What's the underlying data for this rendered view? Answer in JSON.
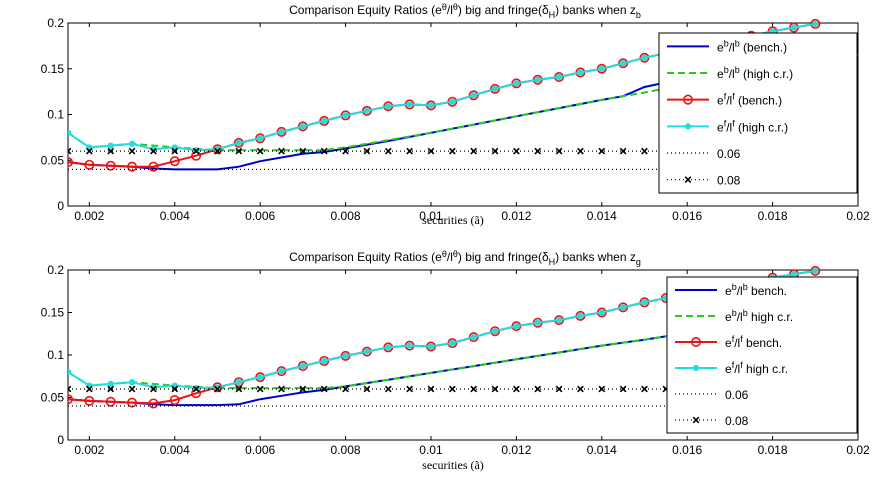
{
  "chart_data": [
    {
      "type": "line",
      "title": "Comparison Equity Ratios (eθ/lθ) big and fringe(δH) banks when zb",
      "title_parts": {
        "pre": "Comparison Equity Ratios (e",
        "sup1": "θ",
        "mid1": "/l",
        "sup2": "θ",
        "mid2": ") big and fringe(δ",
        "sub1": "H",
        "mid3": ") banks when z",
        "sub2": "b"
      },
      "xlabel": "securities (ã)",
      "ylabel": "",
      "xlim": [
        0.0015,
        0.02
      ],
      "ylim": [
        0,
        0.2
      ],
      "xticks": [
        0.002,
        0.004,
        0.006,
        0.008,
        0.01,
        0.012,
        0.014,
        0.016,
        0.018,
        0.02
      ],
      "xtick_labels": [
        "0.002",
        "0.004",
        "0.006",
        "0.008",
        "0.01",
        "0.012",
        "0.014",
        "0.016",
        "0.018",
        "0.02"
      ],
      "yticks": [
        0,
        0.05,
        0.1,
        0.15,
        0.2
      ],
      "ytick_labels": [
        "0",
        "0.05",
        "0.1",
        "0.15",
        "0.2"
      ],
      "grid": false,
      "legend_position": "top-right",
      "series": [
        {
          "name": "e^b/l^b (bench.)",
          "legend": {
            "a": "e",
            "sa": "b",
            "b": "/l",
            "sb": "b",
            "rest": " (bench.)"
          },
          "color": "#0000cc",
          "style": "solid",
          "marker": "none",
          "x": [
            0.0015,
            0.002,
            0.0025,
            0.003,
            0.0035,
            0.004,
            0.0045,
            0.005,
            0.0055,
            0.006,
            0.0065,
            0.007,
            0.0075,
            0.008,
            0.009,
            0.01,
            0.011,
            0.012,
            0.013,
            0.014,
            0.0145,
            0.015,
            0.016,
            0.017,
            0.018,
            0.019,
            0.02
          ],
          "y": [
            0.048,
            0.045,
            0.044,
            0.043,
            0.041,
            0.04,
            0.04,
            0.04,
            0.043,
            0.049,
            0.053,
            0.057,
            0.059,
            0.063,
            0.071,
            0.08,
            0.089,
            0.098,
            0.107,
            0.116,
            0.12,
            0.13,
            0.14,
            0.15,
            0.16,
            0.167,
            0.174
          ]
        },
        {
          "name": "e^b/l^b (high c.r.)",
          "legend": {
            "a": "e",
            "sa": "b",
            "b": "/l",
            "sb": "b",
            "rest": " (high c.r.)"
          },
          "color": "#22cc22",
          "style": "dashed",
          "marker": "none",
          "x": [
            0.0015,
            0.002,
            0.003,
            0.004,
            0.005,
            0.0055,
            0.006,
            0.0065,
            0.007,
            0.0075,
            0.008,
            0.009,
            0.01,
            0.011,
            0.012,
            0.013,
            0.014,
            0.015,
            0.016,
            0.017,
            0.018,
            0.019,
            0.02
          ],
          "y": [
            0.08,
            0.064,
            0.068,
            0.064,
            0.061,
            0.061,
            0.061,
            0.061,
            0.061,
            0.061,
            0.064,
            0.072,
            0.08,
            0.089,
            0.098,
            0.107,
            0.116,
            0.124,
            0.133,
            0.142,
            0.15,
            0.158,
            0.165
          ]
        },
        {
          "name": "e^f/l^f (bench.)",
          "legend": {
            "a": "e",
            "sa": "f",
            "b": "/l",
            "sb": "f",
            "rest": " (bench.)"
          },
          "color": "#ee1111",
          "style": "solid",
          "marker": "circle",
          "x": [
            0.0015,
            0.002,
            0.0025,
            0.003,
            0.0035,
            0.004,
            0.0045,
            0.005,
            0.0055,
            0.006,
            0.0065,
            0.007,
            0.0075,
            0.008,
            0.0085,
            0.009,
            0.0095,
            0.01,
            0.0105,
            0.011,
            0.0115,
            0.012,
            0.0125,
            0.013,
            0.0135,
            0.014,
            0.0145,
            0.015,
            0.0155,
            0.016,
            0.0165,
            0.017,
            0.0175,
            0.018,
            0.0185,
            0.019
          ],
          "y": [
            0.048,
            0.045,
            0.044,
            0.043,
            0.043,
            0.049,
            0.055,
            0.062,
            0.069,
            0.074,
            0.081,
            0.087,
            0.093,
            0.099,
            0.104,
            0.109,
            0.111,
            0.11,
            0.114,
            0.121,
            0.128,
            0.134,
            0.138,
            0.141,
            0.146,
            0.15,
            0.156,
            0.162,
            0.167,
            0.172,
            0.176,
            0.181,
            0.186,
            0.191,
            0.195,
            0.199
          ]
        },
        {
          "name": "e^f/l^f (high c.r.)",
          "legend": {
            "a": "e",
            "sa": "f",
            "b": "/l",
            "sb": "f",
            "rest": " (high c.r.)"
          },
          "color": "#22dddd",
          "style": "solid",
          "marker": "dot",
          "x": [
            0.0015,
            0.002,
            0.0025,
            0.003,
            0.0035,
            0.004,
            0.0045,
            0.005,
            0.0055,
            0.006,
            0.0065,
            0.007,
            0.0075,
            0.008,
            0.0085,
            0.009,
            0.0095,
            0.01,
            0.0105,
            0.011,
            0.0115,
            0.012,
            0.0125,
            0.013,
            0.0135,
            0.014,
            0.0145,
            0.015,
            0.0155,
            0.016,
            0.0165,
            0.017,
            0.0175,
            0.018,
            0.0185,
            0.019
          ],
          "y": [
            0.08,
            0.064,
            0.066,
            0.068,
            0.062,
            0.064,
            0.061,
            0.062,
            0.069,
            0.074,
            0.081,
            0.087,
            0.093,
            0.099,
            0.104,
            0.109,
            0.111,
            0.11,
            0.114,
            0.121,
            0.128,
            0.134,
            0.138,
            0.141,
            0.146,
            0.15,
            0.156,
            0.162,
            0.167,
            0.172,
            0.176,
            0.181,
            0.186,
            0.191,
            0.195,
            0.199
          ]
        },
        {
          "name": "0.06",
          "legend": {
            "a": "0.06",
            "sa": "",
            "b": "",
            "sb": "",
            "rest": ""
          },
          "color": "#000000",
          "style": "dotted",
          "marker": "none",
          "x": [
            0.0015,
            0.02
          ],
          "y": [
            0.04,
            0.04
          ]
        },
        {
          "name": "0.08",
          "legend": {
            "a": "0.08",
            "sa": "",
            "b": "",
            "sb": "",
            "rest": ""
          },
          "color": "#000000",
          "style": "dotted",
          "marker": "x",
          "x": [
            0.0015,
            0.002,
            0.0025,
            0.003,
            0.0035,
            0.004,
            0.0045,
            0.005,
            0.0055,
            0.006,
            0.0065,
            0.007,
            0.0075,
            0.008,
            0.0085,
            0.009,
            0.0095,
            0.01,
            0.0105,
            0.011,
            0.0115,
            0.012,
            0.0125,
            0.013,
            0.0135,
            0.014,
            0.0145,
            0.015,
            0.0155,
            0.016,
            0.0165,
            0.017,
            0.0175,
            0.018,
            0.0185,
            0.019,
            0.0195,
            0.02
          ],
          "y": [
            0.06,
            0.06,
            0.06,
            0.06,
            0.06,
            0.06,
            0.06,
            0.06,
            0.06,
            0.06,
            0.06,
            0.06,
            0.06,
            0.06,
            0.06,
            0.06,
            0.06,
            0.06,
            0.06,
            0.06,
            0.06,
            0.06,
            0.06,
            0.06,
            0.06,
            0.06,
            0.06,
            0.06,
            0.06,
            0.06,
            0.06,
            0.06,
            0.06,
            0.06,
            0.06,
            0.06,
            0.06,
            0.06
          ]
        }
      ]
    },
    {
      "type": "line",
      "title": "Comparison Equity Ratios (eθ/lθ) big and fringe(δH) banks when zg",
      "title_parts": {
        "pre": "Comparison Equity Ratios (e",
        "sup1": "θ",
        "mid1": "/l",
        "sup2": "θ",
        "mid2": ") big and fringe(δ",
        "sub1": "H",
        "mid3": ") banks when z",
        "sub2": "g"
      },
      "xlabel": "securities (ã)",
      "ylabel": "",
      "xlim": [
        0.0015,
        0.02
      ],
      "ylim": [
        0,
        0.2
      ],
      "xticks": [
        0.002,
        0.004,
        0.006,
        0.008,
        0.01,
        0.012,
        0.014,
        0.016,
        0.018,
        0.02
      ],
      "xtick_labels": [
        "0.002",
        "0.004",
        "0.006",
        "0.008",
        "0.01",
        "0.012",
        "0.014",
        "0.016",
        "0.018",
        "0.02"
      ],
      "yticks": [
        0,
        0.05,
        0.1,
        0.15,
        0.2
      ],
      "ytick_labels": [
        "0",
        "0.05",
        "0.1",
        "0.15",
        "0.2"
      ],
      "grid": false,
      "legend_position": "top-right",
      "series": [
        {
          "name": "e^b/l^b bench.",
          "legend": {
            "a": "e",
            "sa": "b",
            "b": "/l",
            "sb": "b",
            "rest": " bench."
          },
          "color": "#0000cc",
          "style": "solid",
          "marker": "none",
          "x": [
            0.0015,
            0.002,
            0.0025,
            0.003,
            0.0035,
            0.004,
            0.0045,
            0.005,
            0.0055,
            0.006,
            0.0065,
            0.007,
            0.0075,
            0.008,
            0.009,
            0.01,
            0.011,
            0.012,
            0.013,
            0.014,
            0.015,
            0.016,
            0.017,
            0.018,
            0.019,
            0.02
          ],
          "y": [
            0.048,
            0.046,
            0.045,
            0.044,
            0.042,
            0.041,
            0.041,
            0.041,
            0.042,
            0.048,
            0.052,
            0.056,
            0.059,
            0.063,
            0.071,
            0.079,
            0.087,
            0.095,
            0.103,
            0.111,
            0.118,
            0.126,
            0.134,
            0.141,
            0.149,
            0.156
          ]
        },
        {
          "name": "e^b/l^b high c.r.",
          "legend": {
            "a": "e",
            "sa": "b",
            "b": "/l",
            "sb": "b",
            "rest": " high c.r."
          },
          "color": "#22cc22",
          "style": "dashed",
          "marker": "none",
          "x": [
            0.0015,
            0.002,
            0.003,
            0.004,
            0.005,
            0.0055,
            0.006,
            0.0065,
            0.007,
            0.0075,
            0.008,
            0.009,
            0.01,
            0.011,
            0.012,
            0.013,
            0.014,
            0.015,
            0.016,
            0.017,
            0.018,
            0.019,
            0.02
          ],
          "y": [
            0.08,
            0.064,
            0.068,
            0.064,
            0.061,
            0.061,
            0.061,
            0.061,
            0.061,
            0.061,
            0.063,
            0.071,
            0.079,
            0.087,
            0.095,
            0.103,
            0.111,
            0.118,
            0.126,
            0.134,
            0.141,
            0.149,
            0.156
          ]
        },
        {
          "name": "e^f/l^f bench.",
          "legend": {
            "a": "e",
            "sa": "f",
            "b": "/l",
            "sb": "f",
            "rest": " bench."
          },
          "color": "#ee1111",
          "style": "solid",
          "marker": "circle",
          "x": [
            0.0015,
            0.002,
            0.0025,
            0.003,
            0.0035,
            0.004,
            0.0045,
            0.005,
            0.0055,
            0.006,
            0.0065,
            0.007,
            0.0075,
            0.008,
            0.0085,
            0.009,
            0.0095,
            0.01,
            0.0105,
            0.011,
            0.0115,
            0.012,
            0.0125,
            0.013,
            0.0135,
            0.014,
            0.0145,
            0.015,
            0.0155,
            0.016,
            0.0165,
            0.017,
            0.0175,
            0.018,
            0.0185,
            0.019
          ],
          "y": [
            0.048,
            0.046,
            0.045,
            0.044,
            0.043,
            0.047,
            0.055,
            0.062,
            0.068,
            0.074,
            0.081,
            0.087,
            0.093,
            0.099,
            0.104,
            0.109,
            0.111,
            0.11,
            0.114,
            0.121,
            0.128,
            0.134,
            0.138,
            0.141,
            0.146,
            0.15,
            0.156,
            0.162,
            0.167,
            0.172,
            0.176,
            0.181,
            0.186,
            0.191,
            0.195,
            0.199
          ]
        },
        {
          "name": "e^f/l^f high c.r.",
          "legend": {
            "a": "e",
            "sa": "f",
            "b": "/l",
            "sb": "f",
            "rest": " high c.r."
          },
          "color": "#22dddd",
          "style": "solid",
          "marker": "dot",
          "x": [
            0.0015,
            0.002,
            0.0025,
            0.003,
            0.0035,
            0.004,
            0.0045,
            0.005,
            0.0055,
            0.006,
            0.0065,
            0.007,
            0.0075,
            0.008,
            0.0085,
            0.009,
            0.0095,
            0.01,
            0.0105,
            0.011,
            0.0115,
            0.012,
            0.0125,
            0.013,
            0.0135,
            0.014,
            0.0145,
            0.015,
            0.0155,
            0.016,
            0.0165,
            0.017,
            0.0175,
            0.018,
            0.0185,
            0.019
          ],
          "y": [
            0.08,
            0.064,
            0.066,
            0.068,
            0.062,
            0.064,
            0.061,
            0.062,
            0.068,
            0.074,
            0.081,
            0.087,
            0.093,
            0.099,
            0.104,
            0.109,
            0.111,
            0.11,
            0.114,
            0.121,
            0.128,
            0.134,
            0.138,
            0.141,
            0.146,
            0.15,
            0.156,
            0.162,
            0.167,
            0.172,
            0.176,
            0.181,
            0.186,
            0.191,
            0.195,
            0.199
          ]
        },
        {
          "name": "0.06",
          "legend": {
            "a": "0.06",
            "sa": "",
            "b": "",
            "sb": "",
            "rest": ""
          },
          "color": "#000000",
          "style": "dotted",
          "marker": "none",
          "x": [
            0.0015,
            0.02
          ],
          "y": [
            0.04,
            0.04
          ]
        },
        {
          "name": "0.08",
          "legend": {
            "a": "0.08",
            "sa": "",
            "b": "",
            "sb": "",
            "rest": ""
          },
          "color": "#000000",
          "style": "dotted",
          "marker": "x",
          "x": [
            0.0015,
            0.002,
            0.0025,
            0.003,
            0.0035,
            0.004,
            0.0045,
            0.005,
            0.0055,
            0.006,
            0.0065,
            0.007,
            0.0075,
            0.008,
            0.0085,
            0.009,
            0.0095,
            0.01,
            0.0105,
            0.011,
            0.0115,
            0.012,
            0.0125,
            0.013,
            0.0135,
            0.014,
            0.0145,
            0.015,
            0.0155,
            0.016,
            0.0165,
            0.017,
            0.0175,
            0.018,
            0.0185,
            0.019,
            0.0195,
            0.02
          ],
          "y": [
            0.06,
            0.06,
            0.06,
            0.06,
            0.06,
            0.06,
            0.06,
            0.06,
            0.06,
            0.06,
            0.06,
            0.06,
            0.06,
            0.06,
            0.06,
            0.06,
            0.06,
            0.06,
            0.06,
            0.06,
            0.06,
            0.06,
            0.06,
            0.06,
            0.06,
            0.06,
            0.06,
            0.06,
            0.06,
            0.06,
            0.06,
            0.06,
            0.06,
            0.06,
            0.06,
            0.06,
            0.06,
            0.06
          ]
        }
      ]
    }
  ]
}
